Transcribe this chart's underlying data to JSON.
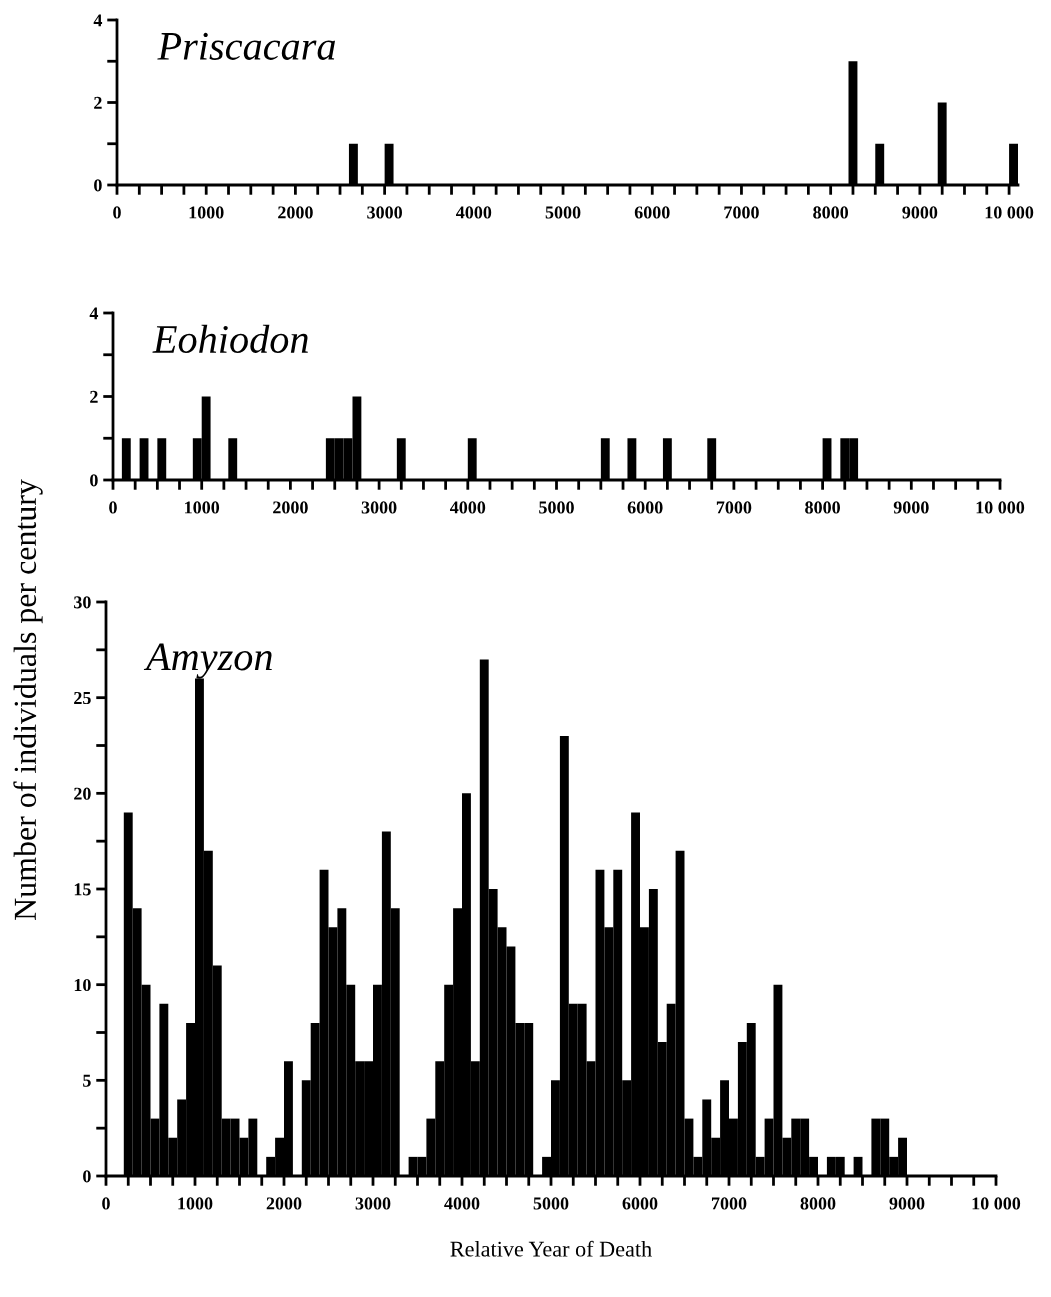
{
  "chart_data": [
    {
      "type": "histogram",
      "title": "Priscacara",
      "bins": [
        0,
        100,
        200,
        300,
        400,
        500,
        600,
        700,
        800,
        900,
        1000,
        1100,
        1200,
        1300,
        1400,
        1500,
        1600,
        1700,
        1800,
        1900,
        2000,
        2100,
        2200,
        2300,
        2400,
        2500,
        2600,
        2700,
        2800,
        2900,
        3000,
        3100,
        3200,
        3300,
        3400,
        3500,
        3600,
        3700,
        3800,
        3900,
        4000,
        4100,
        4200,
        4300,
        4400,
        4500,
        4600,
        4700,
        4800,
        4900,
        5000,
        5100,
        5200,
        5300,
        5400,
        5500,
        5600,
        5700,
        5800,
        5900,
        6000,
        6100,
        6200,
        6300,
        6400,
        6500,
        6600,
        6700,
        6800,
        6900,
        7000,
        7100,
        7200,
        7300,
        7400,
        7500,
        7600,
        7700,
        7800,
        7900,
        8000,
        8100,
        8200,
        8300,
        8400,
        8500,
        8600,
        8700,
        8800,
        8900,
        9000,
        9100,
        9200,
        9300,
        9400,
        9500,
        9600,
        9700,
        9800,
        9900,
        10000,
        10100
      ],
      "values": [
        0,
        0,
        0,
        0,
        0,
        0,
        0,
        0,
        0,
        0,
        0,
        0,
        0,
        0,
        0,
        0,
        0,
        0,
        0,
        0,
        0,
        0,
        0,
        0,
        0,
        0,
        1,
        0,
        0,
        0,
        1,
        0,
        0,
        0,
        0,
        0,
        0,
        0,
        0,
        0,
        0,
        0,
        0,
        0,
        0,
        0,
        0,
        0,
        0,
        0,
        0,
        0,
        0,
        0,
        0,
        0,
        0,
        0,
        0,
        0,
        0,
        0,
        0,
        0,
        0,
        0,
        0,
        0,
        0,
        0,
        0,
        0,
        0,
        0,
        0,
        0,
        0,
        0,
        0,
        0,
        0,
        0,
        3,
        0,
        0,
        1,
        0,
        0,
        0,
        0,
        0,
        0,
        2,
        0,
        0,
        0,
        0,
        0,
        0,
        0,
        1
      ],
      "color": "#000000",
      "xlim": [
        0,
        10100
      ],
      "ylim": [
        0,
        4
      ],
      "xticks": [
        0,
        {
          "value": 250,
          "label": null
        },
        {
          "value": 500,
          "label": null
        },
        {
          "value": 750,
          "label": null
        },
        1000,
        {
          "value": 1250,
          "label": null
        },
        {
          "value": 1500,
          "label": null
        },
        {
          "value": 1750,
          "label": null
        },
        2000,
        {
          "value": 2250,
          "label": null
        },
        {
          "value": 2500,
          "label": null
        },
        {
          "value": 2750,
          "label": null
        },
        3000,
        {
          "value": 3250,
          "label": null
        },
        {
          "value": 3500,
          "label": null
        },
        {
          "value": 3750,
          "label": null
        },
        4000,
        {
          "value": 4250,
          "label": null
        },
        {
          "value": 4500,
          "label": null
        },
        {
          "value": 4750,
          "label": null
        },
        5000,
        {
          "value": 5250,
          "label": null
        },
        {
          "value": 5500,
          "label": null
        },
        {
          "value": 5750,
          "label": null
        },
        6000,
        {
          "value": 6250,
          "label": null
        },
        {
          "value": 6500,
          "label": null
        },
        {
          "value": 6750,
          "label": null
        },
        7000,
        {
          "value": 7250,
          "label": null
        },
        {
          "value": 7500,
          "label": null
        },
        {
          "value": 7750,
          "label": null
        },
        8000,
        {
          "value": 8250,
          "label": null
        },
        {
          "value": 8500,
          "label": null
        },
        {
          "value": 8750,
          "label": null
        },
        9000,
        {
          "value": 9250,
          "label": null
        },
        {
          "value": 9500,
          "label": null
        },
        {
          "value": 9750,
          "label": null
        },
        {
          "value": 10000,
          "label": "10 000"
        }
      ],
      "yticks": [
        0,
        {
          "value": 1,
          "label": null
        },
        2,
        {
          "value": 3,
          "label": null
        },
        4
      ],
      "grid": false
    },
    {
      "type": "histogram",
      "title": "Eohiodon",
      "bins": [
        0,
        100,
        200,
        300,
        400,
        500,
        600,
        700,
        800,
        900,
        1000,
        1100,
        1200,
        1300,
        1400,
        1500,
        1600,
        1700,
        1800,
        1900,
        2000,
        2100,
        2200,
        2300,
        2400,
        2500,
        2600,
        2700,
        2800,
        2900,
        3000,
        3100,
        3200,
        3300,
        3400,
        3500,
        3600,
        3700,
        3800,
        3900,
        4000,
        4100,
        4200,
        4300,
        4400,
        4500,
        4600,
        4700,
        4800,
        4900,
        5000,
        5100,
        5200,
        5300,
        5400,
        5500,
        5600,
        5700,
        5800,
        5900,
        6000,
        6100,
        6200,
        6300,
        6400,
        6500,
        6600,
        6700,
        6800,
        6900,
        7000,
        7100,
        7200,
        7300,
        7400,
        7500,
        7600,
        7700,
        7800,
        7900,
        8000,
        8100,
        8200,
        8300,
        8400,
        8500,
        8600,
        8700,
        8800,
        8900,
        9000,
        9100,
        9200,
        9300,
        9400,
        9500,
        9600,
        9700,
        9800,
        9900,
        10000
      ],
      "values": [
        0,
        1,
        0,
        1,
        0,
        1,
        0,
        0,
        0,
        1,
        2,
        0,
        0,
        1,
        0,
        0,
        0,
        0,
        0,
        0,
        0,
        0,
        0,
        0,
        1,
        1,
        1,
        2,
        0,
        0,
        0,
        0,
        1,
        0,
        0,
        0,
        0,
        0,
        0,
        0,
        1,
        0,
        0,
        0,
        0,
        0,
        0,
        0,
        0,
        0,
        0,
        0,
        0,
        0,
        0,
        1,
        0,
        0,
        1,
        0,
        0,
        0,
        1,
        0,
        0,
        0,
        0,
        1,
        0,
        0,
        0,
        0,
        0,
        0,
        0,
        0,
        0,
        0,
        0,
        0,
        1,
        0,
        1,
        1,
        0,
        0,
        0,
        0,
        0,
        0,
        0,
        0,
        0,
        0,
        0,
        0,
        0,
        0,
        0,
        0
      ],
      "color": "#000000",
      "xlim": [
        0,
        10000
      ],
      "ylim": [
        0,
        4
      ],
      "xticks": [
        0,
        {
          "value": 250,
          "label": null
        },
        {
          "value": 500,
          "label": null
        },
        {
          "value": 750,
          "label": null
        },
        1000,
        {
          "value": 1250,
          "label": null
        },
        {
          "value": 1500,
          "label": null
        },
        {
          "value": 1750,
          "label": null
        },
        2000,
        {
          "value": 2250,
          "label": null
        },
        {
          "value": 2500,
          "label": null
        },
        {
          "value": 2750,
          "label": null
        },
        3000,
        {
          "value": 3250,
          "label": null
        },
        {
          "value": 3500,
          "label": null
        },
        {
          "value": 3750,
          "label": null
        },
        4000,
        {
          "value": 4250,
          "label": null
        },
        {
          "value": 4500,
          "label": null
        },
        {
          "value": 4750,
          "label": null
        },
        5000,
        {
          "value": 5250,
          "label": null
        },
        {
          "value": 5500,
          "label": null
        },
        {
          "value": 5750,
          "label": null
        },
        6000,
        {
          "value": 6250,
          "label": null
        },
        {
          "value": 6500,
          "label": null
        },
        {
          "value": 6750,
          "label": null
        },
        7000,
        {
          "value": 7250,
          "label": null
        },
        {
          "value": 7500,
          "label": null
        },
        {
          "value": 7750,
          "label": null
        },
        8000,
        {
          "value": 8250,
          "label": null
        },
        {
          "value": 8500,
          "label": null
        },
        {
          "value": 8750,
          "label": null
        },
        9000,
        {
          "value": 9250,
          "label": null
        },
        {
          "value": 9500,
          "label": null
        },
        {
          "value": 9750,
          "label": null
        },
        {
          "value": 10000,
          "label": "10 000"
        }
      ],
      "yticks": [
        0,
        {
          "value": 1,
          "label": null
        },
        2,
        {
          "value": 3,
          "label": null
        },
        4
      ],
      "grid": false
    },
    {
      "type": "histogram",
      "title": "Amyzon",
      "ylabel": "Number of individuals per century",
      "xlabel": "Relative Year of Death",
      "bins": [
        0,
        100,
        200,
        300,
        400,
        500,
        600,
        700,
        800,
        900,
        1000,
        1100,
        1200,
        1300,
        1400,
        1500,
        1600,
        1700,
        1800,
        1900,
        2000,
        2100,
        2200,
        2300,
        2400,
        2500,
        2600,
        2700,
        2800,
        2900,
        3000,
        3100,
        3200,
        3300,
        3400,
        3500,
        3600,
        3700,
        3800,
        3900,
        4000,
        4100,
        4200,
        4300,
        4400,
        4500,
        4600,
        4700,
        4800,
        4900,
        5000,
        5100,
        5200,
        5300,
        5400,
        5500,
        5600,
        5700,
        5800,
        5900,
        6000,
        6100,
        6200,
        6300,
        6400,
        6500,
        6600,
        6700,
        6800,
        6900,
        7000,
        7100,
        7200,
        7300,
        7400,
        7500,
        7600,
        7700,
        7800,
        7900,
        8000,
        8100,
        8200,
        8300,
        8400,
        8500,
        8600,
        8700,
        8800,
        8900,
        9000,
        9100,
        9200,
        9300,
        9400,
        9500,
        9600,
        9700,
        9800,
        9900,
        10000
      ],
      "values": [
        0,
        0,
        19,
        14,
        10,
        3,
        9,
        2,
        4,
        8,
        26,
        17,
        11,
        3,
        3,
        2,
        3,
        0,
        1,
        2,
        6,
        0,
        5,
        8,
        16,
        13,
        14,
        10,
        6,
        6,
        10,
        18,
        14,
        0,
        1,
        1,
        3,
        6,
        10,
        14,
        20,
        6,
        27,
        15,
        13,
        12,
        8,
        8,
        0,
        1,
        5,
        23,
        9,
        9,
        6,
        16,
        13,
        16,
        5,
        19,
        13,
        15,
        7,
        9,
        17,
        3,
        1,
        4,
        2,
        5,
        3,
        7,
        8,
        1,
        3,
        10,
        2,
        3,
        3,
        1,
        0,
        1,
        1,
        0,
        1,
        0,
        3,
        3,
        1,
        2,
        0,
        0,
        0,
        0,
        0,
        0,
        0,
        0,
        0,
        0
      ],
      "color": "#000000",
      "xlim": [
        0,
        10000
      ],
      "ylim": [
        0,
        30
      ],
      "xticks": [
        0,
        {
          "value": 250,
          "label": null
        },
        {
          "value": 500,
          "label": null
        },
        {
          "value": 750,
          "label": null
        },
        1000,
        {
          "value": 1250,
          "label": null
        },
        {
          "value": 1500,
          "label": null
        },
        {
          "value": 1750,
          "label": null
        },
        2000,
        {
          "value": 2250,
          "label": null
        },
        {
          "value": 2500,
          "label": null
        },
        {
          "value": 2750,
          "label": null
        },
        3000,
        {
          "value": 3250,
          "label": null
        },
        {
          "value": 3500,
          "label": null
        },
        {
          "value": 3750,
          "label": null
        },
        4000,
        {
          "value": 4250,
          "label": null
        },
        {
          "value": 4500,
          "label": null
        },
        {
          "value": 4750,
          "label": null
        },
        5000,
        {
          "value": 5250,
          "label": null
        },
        {
          "value": 5500,
          "label": null
        },
        {
          "value": 5750,
          "label": null
        },
        6000,
        {
          "value": 6250,
          "label": null
        },
        {
          "value": 6500,
          "label": null
        },
        {
          "value": 6750,
          "label": null
        },
        7000,
        {
          "value": 7250,
          "label": null
        },
        {
          "value": 7500,
          "label": null
        },
        {
          "value": 7750,
          "label": null
        },
        8000,
        {
          "value": 8250,
          "label": null
        },
        {
          "value": 8500,
          "label": null
        },
        {
          "value": 8750,
          "label": null
        },
        9000,
        {
          "value": 9250,
          "label": null
        },
        {
          "value": 9500,
          "label": null
        },
        {
          "value": 9750,
          "label": null
        },
        {
          "value": 10000,
          "label": "10 000"
        }
      ],
      "yticks": [
        0,
        {
          "value": 2.5,
          "label": null
        },
        5,
        {
          "value": 7.5,
          "label": null
        },
        10,
        {
          "value": 12.5,
          "label": null
        },
        15,
        {
          "value": 17.5,
          "label": null
        },
        20,
        {
          "value": 22.5,
          "label": null
        },
        25,
        {
          "value": 27.5,
          "label": null
        },
        30
      ],
      "grid": false
    }
  ]
}
